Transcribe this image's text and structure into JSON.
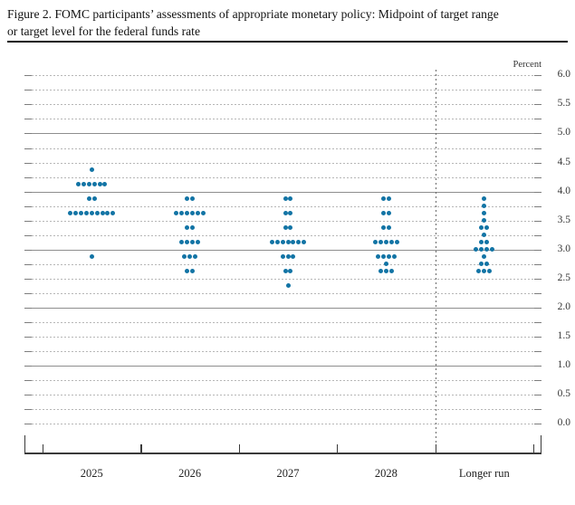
{
  "figure": {
    "title_line1": "Figure 2. FOMC participants’ assessments of appropriate monetary policy: Midpoint of target range",
    "title_line2": "or target level for the federal funds rate"
  },
  "chart_data": {
    "type": "scatter",
    "subtype": "fomc-dot-plot",
    "title": "Figure 2. FOMC participants’ assessments of appropriate monetary policy: Midpoint of target range or target level for the federal funds rate",
    "unit_label": "Percent",
    "ylim": [
      0.0,
      6.0
    ],
    "grid_step": 0.25,
    "label_step": 0.5,
    "solid_gridlines_at": [
      1.0,
      2.0,
      3.0,
      4.0,
      5.0
    ],
    "y_axis_labels": [
      "6.0",
      "5.5",
      "5.0",
      "4.5",
      "4.0",
      "3.5",
      "3.0",
      "2.5",
      "2.0",
      "1.5",
      "1.0",
      "0.5",
      "0.0"
    ],
    "categories": [
      "2025",
      "2026",
      "2027",
      "2028",
      "Longer run"
    ],
    "series": [
      {
        "name": "2025",
        "dots": [
          {
            "rate": 4.375,
            "count": 1
          },
          {
            "rate": 4.125,
            "count": 6
          },
          {
            "rate": 3.875,
            "count": 2
          },
          {
            "rate": 3.625,
            "count": 9
          },
          {
            "rate": 2.875,
            "count": 1
          }
        ]
      },
      {
        "name": "2026",
        "dots": [
          {
            "rate": 3.875,
            "count": 2
          },
          {
            "rate": 3.625,
            "count": 6
          },
          {
            "rate": 3.375,
            "count": 2
          },
          {
            "rate": 3.125,
            "count": 4
          },
          {
            "rate": 2.875,
            "count": 3
          },
          {
            "rate": 2.625,
            "count": 2
          }
        ]
      },
      {
        "name": "2027",
        "dots": [
          {
            "rate": 3.875,
            "count": 2
          },
          {
            "rate": 3.625,
            "count": 2
          },
          {
            "rate": 3.375,
            "count": 2
          },
          {
            "rate": 3.125,
            "count": 7
          },
          {
            "rate": 2.875,
            "count": 3
          },
          {
            "rate": 2.625,
            "count": 2
          },
          {
            "rate": 2.375,
            "count": 1
          }
        ]
      },
      {
        "name": "2028",
        "dots": [
          {
            "rate": 3.875,
            "count": 2
          },
          {
            "rate": 3.625,
            "count": 2
          },
          {
            "rate": 3.375,
            "count": 2
          },
          {
            "rate": 3.125,
            "count": 5
          },
          {
            "rate": 2.875,
            "count": 4
          },
          {
            "rate": 2.75,
            "count": 1
          },
          {
            "rate": 2.625,
            "count": 3
          }
        ]
      },
      {
        "name": "Longer run",
        "dots": [
          {
            "rate": 3.875,
            "count": 1
          },
          {
            "rate": 3.75,
            "count": 1
          },
          {
            "rate": 3.625,
            "count": 1
          },
          {
            "rate": 3.5,
            "count": 1
          },
          {
            "rate": 3.375,
            "count": 2
          },
          {
            "rate": 3.25,
            "count": 1
          },
          {
            "rate": 3.125,
            "count": 2
          },
          {
            "rate": 3.0,
            "count": 4
          },
          {
            "rate": 2.875,
            "count": 1
          },
          {
            "rate": 2.75,
            "count": 2
          },
          {
            "rate": 2.625,
            "count": 3
          }
        ]
      }
    ],
    "dot_color": "#1274a5",
    "axis_color": "#3a3a3a",
    "grid_dotted_color": "#b7b7b7",
    "grid_solid_color": "#8e8e8e"
  }
}
